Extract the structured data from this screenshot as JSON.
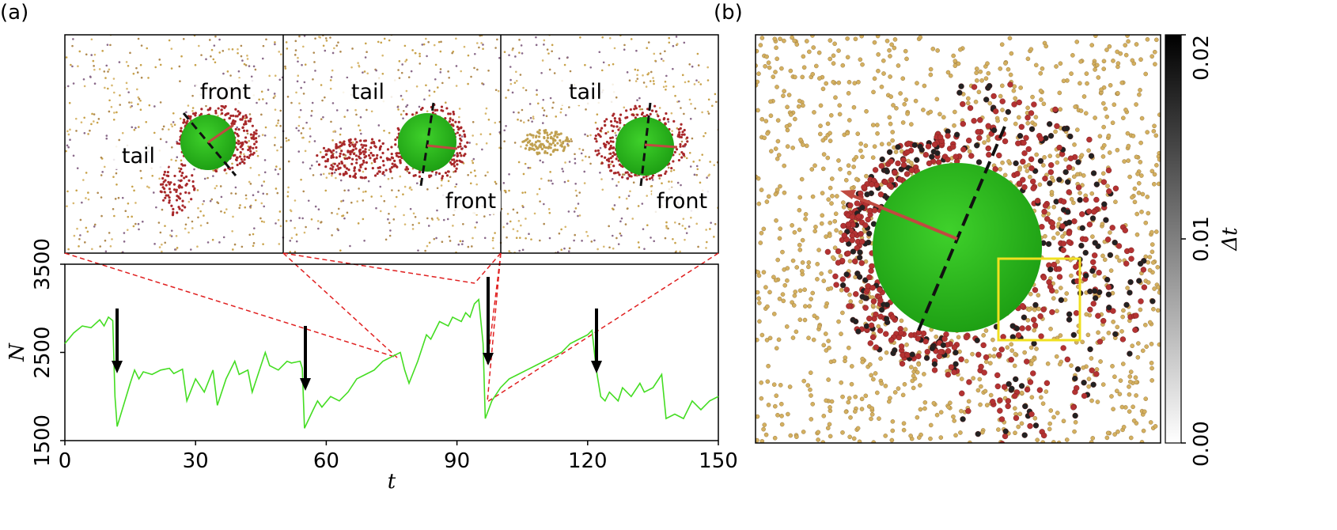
{
  "panel_labels": [
    "(a)",
    "(b)"
  ],
  "snapshots": [
    {
      "front": "front",
      "tail": "tail"
    },
    {
      "front": "front",
      "tail": "tail"
    },
    {
      "front": "front",
      "tail": "tail"
    }
  ],
  "chart_data": [
    {
      "type": "line",
      "xlabel": "t",
      "ylabel": "N",
      "x": [
        0,
        2,
        4,
        6,
        8,
        9,
        10,
        11,
        11.5,
        12,
        15,
        16,
        17,
        18,
        20,
        22,
        24,
        25,
        27,
        28,
        30,
        32,
        34,
        35,
        37,
        39,
        40,
        42,
        43,
        44,
        46,
        47,
        49,
        51,
        52,
        54,
        54.5,
        55,
        57,
        58,
        59,
        61,
        63,
        65,
        67,
        69,
        71,
        73,
        75,
        77,
        78,
        79,
        81,
        83,
        84,
        86,
        88,
        89,
        91,
        92,
        93,
        94,
        95,
        96,
        96.5,
        98,
        100,
        102,
        104,
        106,
        108,
        110,
        112,
        114,
        116,
        118,
        120,
        121,
        122,
        123,
        124,
        125,
        127,
        128,
        130,
        132,
        133,
        135,
        137,
        138,
        140,
        142,
        144,
        146,
        148,
        150
      ],
      "series": [
        {
          "color": "#44dd22",
          "values": [
            2600,
            2720,
            2800,
            2780,
            2870,
            2800,
            2900,
            2860,
            2000,
            1660,
            2150,
            2300,
            2200,
            2280,
            2250,
            2300,
            2320,
            2260,
            2310,
            1950,
            2200,
            2050,
            2300,
            1900,
            2200,
            2400,
            2250,
            2300,
            2050,
            2200,
            2500,
            2350,
            2300,
            2400,
            2380,
            2400,
            2320,
            1640,
            1850,
            1950,
            1880,
            2000,
            1950,
            2050,
            2200,
            2250,
            2300,
            2400,
            2450,
            2500,
            2300,
            2150,
            2400,
            2700,
            2650,
            2850,
            2800,
            2900,
            2850,
            2950,
            2900,
            3050,
            3100,
            2600,
            1750,
            1950,
            2100,
            2200,
            2250,
            2300,
            2350,
            2400,
            2450,
            2500,
            2600,
            2650,
            2700,
            2750,
            2300,
            2000,
            1950,
            2050,
            1950,
            2100,
            2000,
            2150,
            2050,
            2100,
            2250,
            1750,
            1800,
            1750,
            1950,
            1850,
            1950,
            2000
          ]
        }
      ],
      "xlim": [
        0,
        150
      ],
      "xticks": [
        0,
        30,
        60,
        90,
        120,
        150
      ],
      "ylim": [
        1500,
        3500
      ],
      "yticks": [
        1500,
        2500,
        3500
      ]
    },
    {
      "type": "colorbar",
      "ylabel": "Δt",
      "ylim": [
        0,
        0.02
      ],
      "yticks": [
        {
          "value": 0,
          "label": "0.00"
        },
        {
          "value": 0.01,
          "label": "0.01"
        },
        {
          "value": 0.02,
          "label": "0.02"
        }
      ],
      "colors": [
        "#ffffff",
        "#000000"
      ]
    }
  ]
}
